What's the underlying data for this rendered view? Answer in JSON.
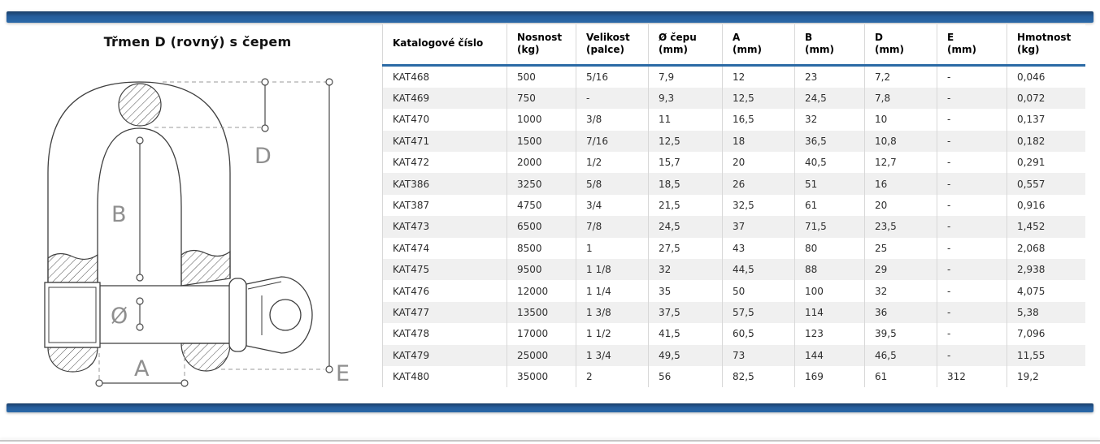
{
  "page": {
    "title": "Třmen D (rovný) s čepem"
  },
  "diagram": {
    "labels": {
      "D": "D",
      "B": "B",
      "diameter": "Ø",
      "A": "A",
      "E": "E"
    }
  },
  "table": {
    "columns": [
      {
        "name": "Katalogové číslo",
        "unit": ""
      },
      {
        "name": "Nosnost",
        "unit": "(kg)"
      },
      {
        "name": "Velikost",
        "unit": "(palce)"
      },
      {
        "name": "Ø čepu",
        "unit": "(mm)"
      },
      {
        "name": "A",
        "unit": "(mm)"
      },
      {
        "name": "B",
        "unit": "(mm)"
      },
      {
        "name": "D",
        "unit": "(mm)"
      },
      {
        "name": "E",
        "unit": "(mm)"
      },
      {
        "name": "Hmotnost",
        "unit": "(kg)"
      }
    ],
    "rows": [
      [
        "KAT468",
        "500",
        "5/16",
        "7,9",
        "12",
        "23",
        "7,2",
        "-",
        "0,046"
      ],
      [
        "KAT469",
        "750",
        "-",
        "9,3",
        "12,5",
        "24,5",
        "7,8",
        "-",
        "0,072"
      ],
      [
        "KAT470",
        "1000",
        "3/8",
        "11",
        "16,5",
        "32",
        "10",
        "-",
        "0,137"
      ],
      [
        "KAT471",
        "1500",
        "7/16",
        "12,5",
        "18",
        "36,5",
        "10,8",
        "-",
        "0,182"
      ],
      [
        "KAT472",
        "2000",
        "1/2",
        "15,7",
        "20",
        "40,5",
        "12,7",
        "-",
        "0,291"
      ],
      [
        "KAT386",
        "3250",
        "5/8",
        "18,5",
        "26",
        "51",
        "16",
        "-",
        "0,557"
      ],
      [
        "KAT387",
        "4750",
        "3/4",
        "21,5",
        "32,5",
        "61",
        "20",
        "-",
        "0,916"
      ],
      [
        "KAT473",
        "6500",
        "7/8",
        "24,5",
        "37",
        "71,5",
        "23,5",
        "-",
        "1,452"
      ],
      [
        "KAT474",
        "8500",
        "1",
        "27,5",
        "43",
        "80",
        "25",
        "-",
        "2,068"
      ],
      [
        "KAT475",
        "9500",
        "1 1/8",
        "32",
        "44,5",
        "88",
        "29",
        "-",
        "2,938"
      ],
      [
        "KAT476",
        "12000",
        "1 1/4",
        "35",
        "50",
        "100",
        "32",
        "-",
        "4,075"
      ],
      [
        "KAT477",
        "13500",
        "1 3/8",
        "37,5",
        "57,5",
        "114",
        "36",
        "-",
        "5,38"
      ],
      [
        "KAT478",
        "17000",
        "1 1/2",
        "41,5",
        "60,5",
        "123",
        "39,5",
        "-",
        "7,096"
      ],
      [
        "KAT479",
        "25000",
        "1 3/4",
        "49,5",
        "73",
        "144",
        "46,5",
        "-",
        "11,55"
      ],
      [
        "KAT480",
        "35000",
        "2",
        "56",
        "82,5",
        "169",
        "61",
        "312",
        "19,2"
      ]
    ]
  },
  "colors": {
    "accent_blue": "#2a68a8",
    "accent_blue_dark": "#1b3e68",
    "header_rule_blue": "#2b6aa5",
    "row_stripe": "#f0f0f0",
    "grid_line": "#d8d8d8",
    "dimension_label_gray": "#8f8f8f",
    "bottom_line_gray": "#c6c6c6"
  }
}
